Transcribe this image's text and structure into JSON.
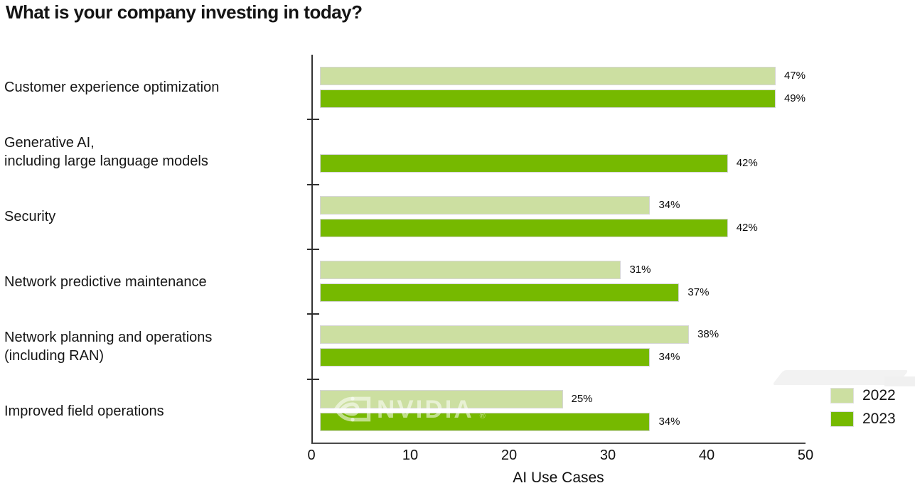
{
  "title": "What is your company investing in today?",
  "chart_data": {
    "type": "bar",
    "orientation": "horizontal",
    "title": "What is your company investing in today?",
    "categories": [
      "Customer experience optimization",
      "Generative AI,\nincluding large language models",
      "Security",
      "Network predictive maintenance",
      "Network planning and operations\n(including RAN)",
      "Improved field operations"
    ],
    "series": [
      {
        "name": "2022",
        "color": "#ccdfa1",
        "values": [
          47,
          null,
          34,
          31,
          38,
          25
        ]
      },
      {
        "name": "2023",
        "color": "#76b900",
        "values": [
          49,
          42,
          42,
          37,
          34,
          34
        ]
      }
    ],
    "value_suffix": "%",
    "xlabel": "AI Use Cases",
    "x_ticks": [
      "0",
      "10",
      "20",
      "30",
      "40",
      "50"
    ],
    "xlim": [
      0,
      50
    ],
    "grid": false,
    "legend_position": "bottom-right"
  },
  "legend": {
    "entries": [
      {
        "label": "2022",
        "color": "#ccdfa1"
      },
      {
        "label": "2023",
        "color": "#76b900"
      }
    ]
  },
  "watermark": {
    "text": "NVIDIA",
    "symbol": "®"
  },
  "colors": {
    "bar_2022": "#ccdfa1",
    "bar_2023": "#76b900",
    "axis": "#3a3a3a",
    "text": "#111111",
    "watermark": "rgba(255,255,255,0.55)"
  }
}
